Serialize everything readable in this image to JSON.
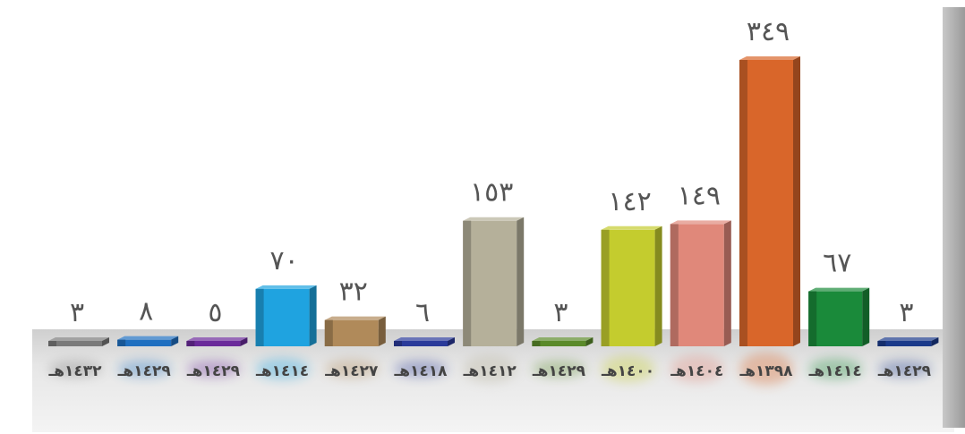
{
  "chart_data": {
    "type": "bar",
    "title": "",
    "xlabel": "",
    "ylabel": "",
    "ylim": [
      0,
      349
    ],
    "grid": false,
    "legend": "none",
    "categories": [
      "١٤٣٢هـ",
      "١٤٢٩هـ",
      "١٤٢٩هـ",
      "١٤١٤هـ",
      "١٤٢٧هـ",
      "١٤١٨هـ",
      "١٤١٢هـ",
      "١٤٢٩هـ",
      "١٤٠٠هـ",
      "١٤٠٤هـ",
      "١٣٩٨هـ",
      "١٤١٤هـ",
      "١٤٢٩هـ"
    ],
    "values": [
      3,
      8,
      5,
      70,
      32,
      6,
      153,
      3,
      142,
      149,
      349,
      67,
      3
    ],
    "value_labels": [
      "٣",
      "٨",
      "٥",
      "٧٠",
      "٣٢",
      "٦",
      "١٥٣",
      "٣",
      "١٤٢",
      "١٤٩",
      "٣٤٩",
      "٦٧",
      "٣"
    ],
    "colors": [
      "#7a7a7a",
      "#1f6fc0",
      "#6a2a9a",
      "#1fa3e0",
      "#b08a5a",
      "#2a3a9a",
      "#b5b09a",
      "#5a8a2a",
      "#c4cc2e",
      "#e0887a",
      "#d9662a",
      "#1a8a3a",
      "#1a3a8a"
    ]
  }
}
